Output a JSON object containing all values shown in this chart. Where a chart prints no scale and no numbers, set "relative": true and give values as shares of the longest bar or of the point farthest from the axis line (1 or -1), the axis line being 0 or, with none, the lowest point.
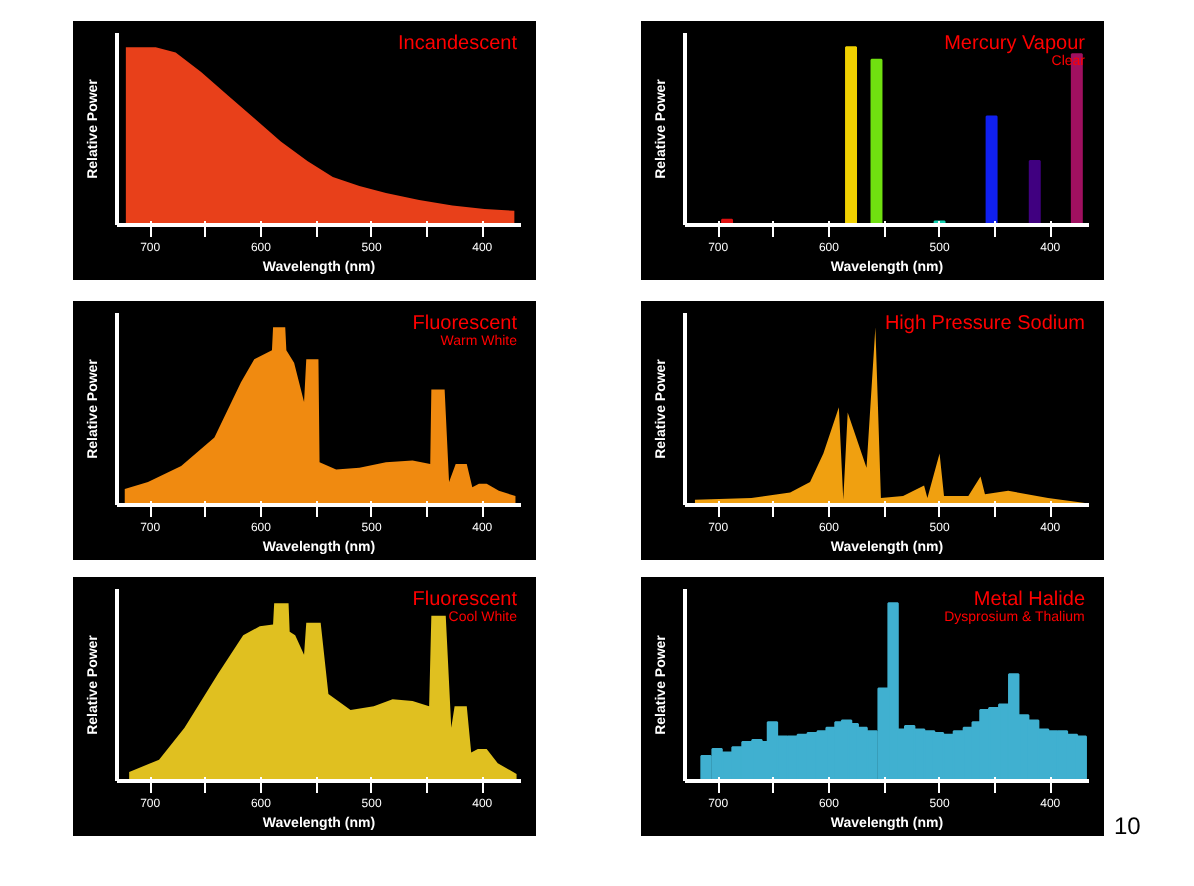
{
  "chart_data": [
    {
      "type": "area",
      "title": "Incandescent",
      "xlabel": "Wavelength (nm)",
      "ylabel": "Relative Power",
      "relative": true,
      "xlim": [
        730,
        365
      ],
      "xticks": [
        700,
        {
          "value": 650,
          "label": null
        },
        600,
        {
          "value": 550,
          "label": null
        },
        500,
        {
          "value": 450,
          "label": null
        },
        400
      ],
      "x": [
        722,
        695,
        677,
        654,
        630,
        606,
        582,
        558,
        535,
        511,
        487,
        457,
        427,
        398,
        371
      ],
      "series": [
        {
          "color": "#e8401a",
          "values": [
            1.0,
            1.0,
            0.97,
            0.86,
            0.73,
            0.6,
            0.47,
            0.36,
            0.27,
            0.22,
            0.18,
            0.14,
            0.11,
            0.09,
            0.08
          ]
        }
      ]
    },
    {
      "type": "bar",
      "title": "Mercury Vapour",
      "subtitle": "Clear",
      "xlabel": "Wavelength (nm)",
      "ylabel": "Relative Power",
      "relative": true,
      "xlim": [
        730,
        365
      ],
      "xticks": [
        700,
        {
          "value": 650,
          "label": null
        },
        600,
        {
          "value": 550,
          "label": null
        },
        500,
        {
          "value": 450,
          "label": null
        },
        400
      ],
      "x": [
        692,
        580,
        557,
        500,
        453,
        414,
        376
      ],
      "values": [
        0.03,
        1.0,
        0.93,
        0.02,
        0.61,
        0.36,
        0.96
      ],
      "colors": [
        "#e01010",
        "#f0d000",
        "#70e010",
        "#10d0b0",
        "#1020f0",
        "#400080",
        "#a01060"
      ]
    },
    {
      "type": "area",
      "title": "Fluorescent",
      "subtitle": "Warm White",
      "xlabel": "Wavelength (nm)",
      "ylabel": "Relative Power",
      "relative": true,
      "xlim": [
        730,
        365
      ],
      "xticks": [
        700,
        {
          "value": 650,
          "label": null
        },
        600,
        {
          "value": 550,
          "label": null
        },
        500,
        {
          "value": 450,
          "label": null
        },
        400
      ],
      "x": [
        723,
        702,
        672,
        642,
        618,
        606,
        590,
        589,
        578,
        577,
        570,
        561,
        559,
        548,
        547,
        532,
        511,
        487,
        463,
        447,
        446,
        434,
        430,
        424,
        414,
        409,
        403,
        396,
        385,
        370
      ],
      "series": [
        {
          "color": "#f08a10",
          "values": [
            0.09,
            0.13,
            0.22,
            0.38,
            0.69,
            0.82,
            0.87,
            1.0,
            1.0,
            0.87,
            0.8,
            0.58,
            0.82,
            0.82,
            0.24,
            0.2,
            0.21,
            0.24,
            0.25,
            0.23,
            0.65,
            0.65,
            0.13,
            0.23,
            0.23,
            0.1,
            0.12,
            0.12,
            0.08,
            0.05
          ]
        }
      ]
    },
    {
      "type": "area",
      "title": "High Pressure Sodium",
      "xlabel": "Wavelength (nm)",
      "ylabel": "Relative Power",
      "relative": true,
      "xlim": [
        730,
        365
      ],
      "xticks": [
        700,
        {
          "value": 650,
          "label": null
        },
        600,
        {
          "value": 550,
          "label": null
        },
        500,
        {
          "value": 450,
          "label": null
        },
        400
      ],
      "x": [
        721,
        670,
        635,
        617,
        605,
        591,
        587,
        583,
        566,
        558,
        553,
        533,
        514,
        511,
        500,
        496,
        474,
        463,
        459,
        438,
        402,
        367
      ],
      "series": [
        {
          "color": "#f0a010",
          "values": [
            0.03,
            0.04,
            0.07,
            0.13,
            0.29,
            0.55,
            0.03,
            0.52,
            0.21,
            1.0,
            0.04,
            0.05,
            0.11,
            0.04,
            0.29,
            0.05,
            0.05,
            0.16,
            0.06,
            0.08,
            0.04,
            0.01
          ]
        }
      ]
    },
    {
      "type": "area",
      "title": "Fluorescent",
      "subtitle": "Cool White",
      "xlabel": "Wavelength (nm)",
      "ylabel": "Relative Power",
      "relative": true,
      "xlim": [
        730,
        365
      ],
      "xticks": [
        700,
        {
          "value": 650,
          "label": null
        },
        600,
        {
          "value": 550,
          "label": null
        },
        500,
        {
          "value": 450,
          "label": null
        },
        400
      ],
      "x": [
        719,
        692,
        669,
        639,
        616,
        601,
        589,
        588,
        575,
        574,
        569,
        561,
        559,
        546,
        539,
        519,
        498,
        481,
        463,
        448,
        446,
        433,
        428,
        425,
        414,
        410,
        404,
        396,
        386,
        369
      ],
      "series": [
        {
          "color": "#e0c020",
          "values": [
            0.05,
            0.12,
            0.3,
            0.6,
            0.82,
            0.87,
            0.88,
            1.0,
            1.0,
            0.84,
            0.82,
            0.71,
            0.89,
            0.89,
            0.49,
            0.4,
            0.42,
            0.46,
            0.45,
            0.42,
            0.93,
            0.93,
            0.3,
            0.42,
            0.42,
            0.16,
            0.18,
            0.18,
            0.1,
            0.04
          ]
        }
      ]
    },
    {
      "type": "bar",
      "title": "Metal Halide",
      "subtitle": "Dysprosium & Thalium",
      "xlabel": "Wavelength (nm)",
      "ylabel": "Relative Power",
      "relative": true,
      "xlim": [
        730,
        365
      ],
      "xticks": [
        700,
        {
          "value": 650,
          "label": null
        },
        600,
        {
          "value": 550,
          "label": null
        },
        500,
        {
          "value": 450,
          "label": null
        },
        400
      ],
      "annotations": [
        "10"
      ],
      "x": [
        711,
        701,
        692,
        683,
        674,
        665,
        658,
        651,
        642,
        633,
        624,
        615,
        606,
        598,
        590,
        584,
        578,
        570,
        561,
        551,
        542,
        535,
        527,
        518,
        509,
        501,
        492,
        483,
        474,
        466,
        459,
        451,
        442,
        433,
        424,
        415,
        406,
        398,
        389,
        380,
        372
      ],
      "values": [
        0.14,
        0.18,
        0.16,
        0.19,
        0.22,
        0.23,
        0.22,
        0.33,
        0.25,
        0.25,
        0.26,
        0.27,
        0.28,
        0.3,
        0.33,
        0.34,
        0.32,
        0.3,
        0.28,
        0.52,
        1.0,
        0.29,
        0.31,
        0.29,
        0.28,
        0.27,
        0.26,
        0.28,
        0.3,
        0.33,
        0.4,
        0.41,
        0.43,
        0.6,
        0.37,
        0.34,
        0.29,
        0.28,
        0.28,
        0.26,
        0.25
      ],
      "color": "#40b0d0"
    }
  ]
}
